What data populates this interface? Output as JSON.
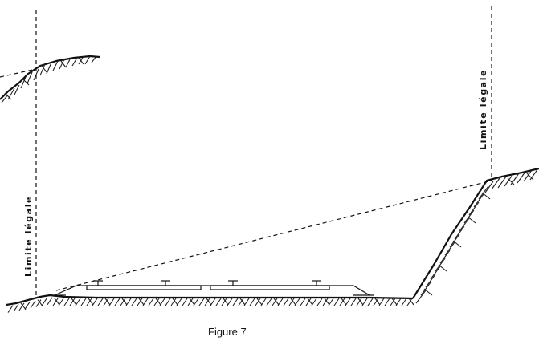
{
  "labels": {
    "left_limit": "Limite légale",
    "right_limit": "Limite légale"
  },
  "caption": "Figure 7"
}
